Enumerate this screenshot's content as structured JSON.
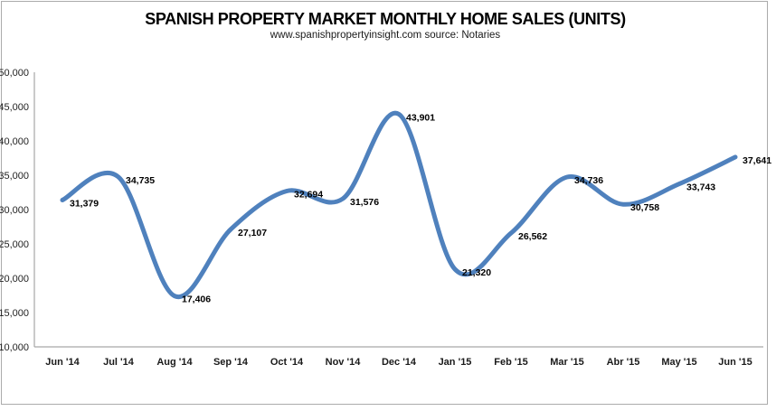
{
  "chart_data": {
    "type": "line",
    "title": "SPANISH PROPERTY MARKET MONTHLY HOME SALES (UNITS)",
    "subtitle": "www.spanishpropertyinsight.com source: Notaries",
    "categories": [
      "Jun '14",
      "Jul '14",
      "Aug '14",
      "Sep '14",
      "Oct '14",
      "Nov '14",
      "Dec '14",
      "Jan '15",
      "Feb '15",
      "Mar '15",
      "Abr '15",
      "May '15",
      "Jun '15"
    ],
    "series": [
      {
        "name": "Monthly home sales (units)",
        "values": [
          31379,
          34735,
          17406,
          27107,
          32694,
          31576,
          43901,
          21320,
          26562,
          34736,
          30758,
          33743,
          37641
        ]
      }
    ],
    "data_labels": [
      "31,379",
      "34,735",
      "17,406",
      "27,107",
      "32,694",
      "31,576",
      "43,901",
      "21,320",
      "26,562",
      "34,736",
      "30,758",
      "33,743",
      "37,641"
    ],
    "ylim": [
      10000,
      50000
    ],
    "ytick_step": 5000,
    "ytick_labels": [
      "50,000",
      "45,000",
      "40,000",
      "35,000",
      "30,000",
      "25,000",
      "20,000",
      "15,000",
      "10,000"
    ],
    "grid": false,
    "legend_position": "none",
    "smooth_line": true,
    "line_color": "#4F81BD",
    "axis_color": "#A6A6A6",
    "label_color": "#000000"
  }
}
